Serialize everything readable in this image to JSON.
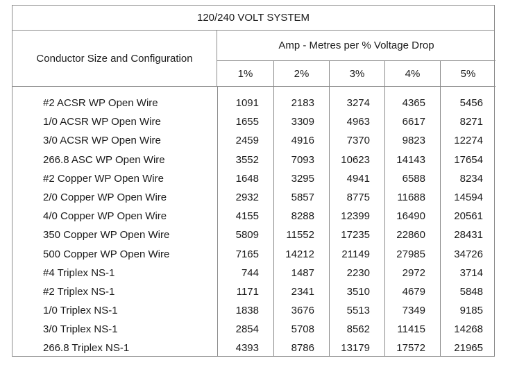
{
  "table": {
    "title": "120/240 VOLT SYSTEM",
    "row_header": "Conductor Size and Configuration",
    "group_header": "Amp  -  Metres per % Voltage Drop",
    "columns": [
      "1%",
      "2%",
      "3%",
      "4%",
      "5%"
    ],
    "rows": [
      {
        "name": "#2  ACSR WP Open Wire",
        "v": [
          "1091",
          "2183",
          "3274",
          "4365",
          "5456"
        ]
      },
      {
        "name": "1/0 ACSR WP Open Wire",
        "v": [
          "1655",
          "3309",
          "4963",
          "6617",
          "8271"
        ]
      },
      {
        "name": "3/0 ACSR WP Open Wire",
        "v": [
          "2459",
          "4916",
          "7370",
          "9823",
          "12274"
        ]
      },
      {
        "name": "266.8 ASC WP Open Wire",
        "v": [
          "3552",
          "7093",
          "10623",
          "14143",
          "17654"
        ]
      },
      {
        "name": "#2 Copper WP Open Wire",
        "v": [
          "1648",
          "3295",
          "4941",
          "6588",
          "8234"
        ]
      },
      {
        "name": "2/0 Copper WP Open Wire",
        "v": [
          "2932",
          "5857",
          "8775",
          "11688",
          "14594"
        ]
      },
      {
        "name": "4/0 Copper WP Open Wire",
        "v": [
          "4155",
          "8288",
          "12399",
          "16490",
          "20561"
        ]
      },
      {
        "name": "350 Copper WP Open Wire",
        "v": [
          "5809",
          "11552",
          "17235",
          "22860",
          "28431"
        ]
      },
      {
        "name": "500 Copper WP Open Wire",
        "v": [
          "7165",
          "14212",
          "21149",
          "27985",
          "34726"
        ]
      },
      {
        "name": "#4 Triplex NS-1",
        "v": [
          "744",
          "1487",
          "2230",
          "2972",
          "3714"
        ]
      },
      {
        "name": "#2 Triplex NS-1",
        "v": [
          "1171",
          "2341",
          "3510",
          "4679",
          "5848"
        ]
      },
      {
        "name": "1/0 Triplex NS-1",
        "v": [
          "1838",
          "3676",
          "5513",
          "7349",
          "9185"
        ]
      },
      {
        "name": "3/0 Triplex NS-1",
        "v": [
          "2854",
          "5708",
          "8562",
          "11415",
          "14268"
        ]
      },
      {
        "name": "266.8 Triplex NS-1",
        "v": [
          "4393",
          "8786",
          "13179",
          "17572",
          "21965"
        ]
      }
    ]
  }
}
